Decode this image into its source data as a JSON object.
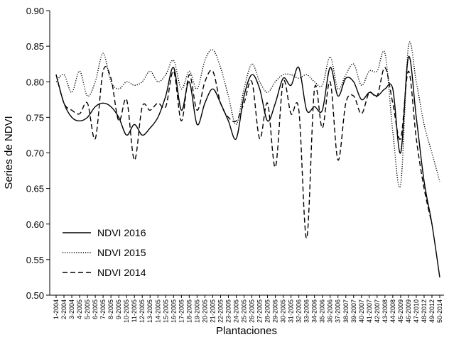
{
  "chart_data": {
    "type": "line",
    "x_label": "Plantaciones",
    "y_label": "Series de NDVI",
    "categories": [
      "1-2004",
      "2-2004",
      "3-2004",
      "4-2005",
      "5-2005",
      "6-2005",
      "7-2005",
      "8-2005",
      "9-2005",
      "10-2005",
      "11-2005",
      "12-2005",
      "13-2005",
      "14-2005",
      "15-2005",
      "16-2005",
      "17-2005",
      "18-2005",
      "19-2005",
      "20-2005",
      "21-2005",
      "22-2005",
      "23-2005",
      "24-2005",
      "25-2005",
      "26-2005",
      "27-2005",
      "28-2005",
      "29-2005",
      "30-2005",
      "31-2005",
      "32-2006",
      "33-2006",
      "34-2006",
      "35-2006",
      "36-2006",
      "37-2006",
      "38-2007",
      "39-2007",
      "40-2007",
      "41-2007",
      "42-2007",
      "43-2008",
      "44-2008",
      "45-2009",
      "46-2009",
      "47-2010",
      "48-2012",
      "49-2012",
      "50-2014"
    ],
    "series": [
      {
        "name": "NDVI 2016",
        "color": "#000000",
        "line_style": "solid",
        "values": [
          0.81,
          0.77,
          0.75,
          0.745,
          0.75,
          0.765,
          0.77,
          0.765,
          0.75,
          0.725,
          0.74,
          0.725,
          0.735,
          0.75,
          0.78,
          0.82,
          0.76,
          0.8,
          0.74,
          0.77,
          0.79,
          0.77,
          0.745,
          0.72,
          0.78,
          0.81,
          0.79,
          0.745,
          0.77,
          0.805,
          0.795,
          0.82,
          0.76,
          0.765,
          0.76,
          0.82,
          0.78,
          0.805,
          0.8,
          0.775,
          0.785,
          0.78,
          0.79,
          0.79,
          0.7,
          0.835,
          0.75,
          0.66,
          0.6,
          0.525
        ]
      },
      {
        "name": "NDVI 2015",
        "color": "#000000",
        "line_style": "dotted",
        "values": [
          0.8,
          0.81,
          0.785,
          0.815,
          0.78,
          0.8,
          0.84,
          0.8,
          0.79,
          0.8,
          0.795,
          0.8,
          0.815,
          0.8,
          0.81,
          0.83,
          0.79,
          0.815,
          0.79,
          0.83,
          0.845,
          0.82,
          0.78,
          0.74,
          0.79,
          0.825,
          0.8,
          0.785,
          0.8,
          0.81,
          0.81,
          0.805,
          0.81,
          0.8,
          0.795,
          0.835,
          0.79,
          0.81,
          0.825,
          0.795,
          0.815,
          0.815,
          0.84,
          0.73,
          0.655,
          0.85,
          0.8,
          0.74,
          0.7,
          0.66
        ]
      },
      {
        "name": "NDVI 2014",
        "color": "#000000",
        "line_style": "dashed",
        "values": [
          0.81,
          0.77,
          0.76,
          0.755,
          0.77,
          0.72,
          0.815,
          0.805,
          0.745,
          0.775,
          0.69,
          0.765,
          0.76,
          0.77,
          0.765,
          0.815,
          0.745,
          0.81,
          0.76,
          0.8,
          0.815,
          0.77,
          0.75,
          0.745,
          0.77,
          0.8,
          0.72,
          0.77,
          0.68,
          0.8,
          0.755,
          0.76,
          0.58,
          0.79,
          0.735,
          0.8,
          0.69,
          0.77,
          0.78,
          0.755,
          0.785,
          0.78,
          0.82,
          0.77,
          0.72,
          0.815,
          0.72,
          0.65,
          0.6,
          null
        ]
      }
    ],
    "ylim": [
      0.5,
      0.9
    ],
    "yticks": [
      {
        "value": 0.5,
        "label": "0.50"
      },
      {
        "value": 0.55,
        "label": "0.55"
      },
      {
        "value": 0.6,
        "label": "0.60"
      },
      {
        "value": 0.65,
        "label": "0.65"
      },
      {
        "value": 0.7,
        "label": "0.70"
      },
      {
        "value": 0.75,
        "label": "0.75"
      },
      {
        "value": 0.8,
        "label": "0.80"
      },
      {
        "value": 0.85,
        "label": "0.85"
      },
      {
        "value": 0.9,
        "label": "0.90"
      }
    ],
    "legend": "lower-left",
    "grid": false
  }
}
